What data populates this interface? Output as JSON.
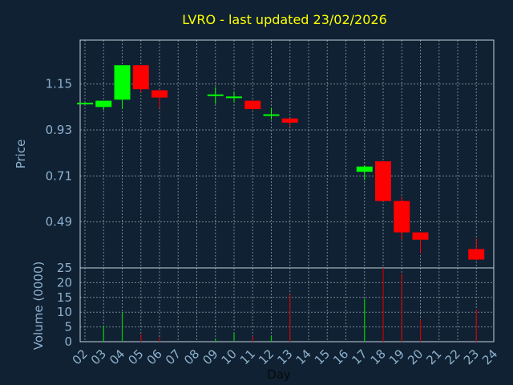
{
  "chart_data": {
    "type": "candlestick",
    "title": "LVRO - last updated 23/02/2026",
    "xlabel": "Day",
    "price_panel": {
      "ylabel": "Price",
      "yticks": [
        "1.15",
        "0.93",
        "0.71",
        "0.49"
      ],
      "ylim": [
        0.27,
        1.36
      ],
      "grid": true
    },
    "volume_panel": {
      "ylabel": "Volume (0000)",
      "yticks": [
        "25",
        "20",
        "15",
        "10",
        "5",
        "0"
      ],
      "ylim": [
        0,
        25
      ],
      "grid": true
    },
    "x_tick_labels": [
      "02",
      "03",
      "04",
      "05",
      "06",
      "07",
      "08",
      "09",
      "10",
      "11",
      "12",
      "13",
      "14",
      "15",
      "16",
      "17",
      "18",
      "19",
      "20",
      "21",
      "22",
      "23",
      "24"
    ],
    "colors": {
      "up": "#00ff00",
      "down": "#ff0000",
      "volume_up": "#00cc00",
      "volume_down": "#cc0000"
    },
    "candles": [
      {
        "day": 2,
        "open": 1.055,
        "high": 1.06,
        "low": 1.055,
        "close": 1.06,
        "volume": 0
      },
      {
        "day": 3,
        "open": 1.04,
        "high": 1.07,
        "low": 1.025,
        "close": 1.07,
        "volume": 5.5
      },
      {
        "day": 4,
        "open": 1.075,
        "high": 1.24,
        "low": 1.03,
        "close": 1.24,
        "volume": 10
      },
      {
        "day": 5,
        "open": 1.24,
        "high": 1.24,
        "low": 1.11,
        "close": 1.125,
        "volume": 2.5
      },
      {
        "day": 6,
        "open": 1.12,
        "high": 1.12,
        "low": 1.035,
        "close": 1.085,
        "volume": 1.5
      },
      {
        "day": 9,
        "open": 1.1,
        "high": 1.135,
        "low": 1.055,
        "close": 1.1,
        "volume": 1
      },
      {
        "day": 10,
        "open": 1.09,
        "high": 1.115,
        "low": 1.06,
        "close": 1.09,
        "volume": 3
      },
      {
        "day": 11,
        "open": 1.07,
        "high": 1.07,
        "low": 1.025,
        "close": 1.03,
        "volume": 2
      },
      {
        "day": 12,
        "open": 1.005,
        "high": 1.035,
        "low": 0.98,
        "close": 1.005,
        "volume": 2
      },
      {
        "day": 13,
        "open": 0.985,
        "high": 0.985,
        "low": 0.945,
        "close": 0.965,
        "volume": 16
      },
      {
        "day": 17,
        "open": 0.73,
        "high": 0.76,
        "low": 0.69,
        "close": 0.755,
        "volume": 14.5
      },
      {
        "day": 18,
        "open": 0.78,
        "high": 0.78,
        "low": 0.59,
        "close": 0.59,
        "volume": 25
      },
      {
        "day": 19,
        "open": 0.59,
        "high": 0.61,
        "low": 0.405,
        "close": 0.44,
        "volume": 23
      },
      {
        "day": 20,
        "open": 0.44,
        "high": 0.44,
        "low": 0.34,
        "close": 0.405,
        "volume": 7.5
      },
      {
        "day": 23,
        "open": 0.36,
        "high": 0.41,
        "low": 0.305,
        "close": 0.31,
        "volume": 11
      }
    ]
  }
}
